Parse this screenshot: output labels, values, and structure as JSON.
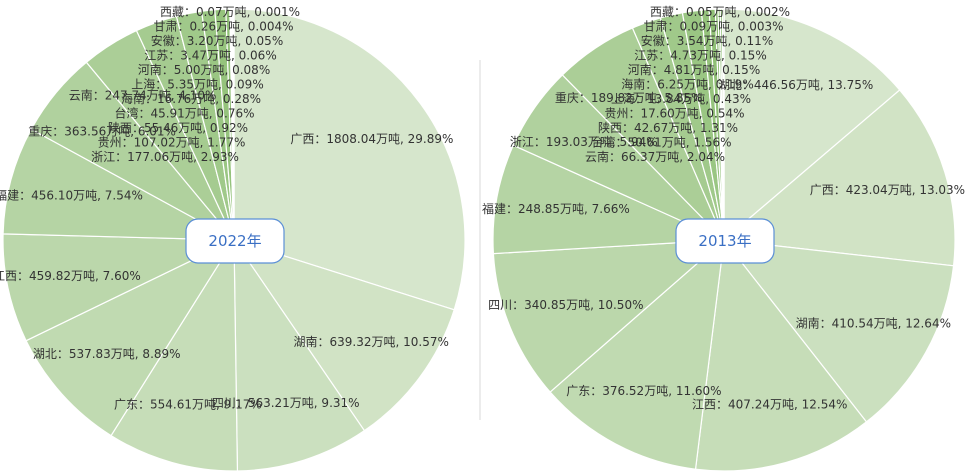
{
  "chart_data": [
    {
      "type": "pie",
      "title": "2022年",
      "unit": "万吨",
      "slices": [
        {
          "name": "广西",
          "value": 1808.04,
          "pct": "29.89%"
        },
        {
          "name": "湖南",
          "value": 639.32,
          "pct": "10.57%"
        },
        {
          "name": "四川",
          "value": 563.21,
          "pct": "9.31%"
        },
        {
          "name": "广东",
          "value": 554.61,
          "pct": "9.17%"
        },
        {
          "name": "湖北",
          "value": 537.83,
          "pct": "8.89%"
        },
        {
          "name": "江西",
          "value": 459.82,
          "pct": "7.60%"
        },
        {
          "name": "福建",
          "value": 456.1,
          "pct": "7.54%"
        },
        {
          "name": "重庆",
          "value": 363.56,
          "pct": "6.01%"
        },
        {
          "name": "云南",
          "value": 247.74,
          "pct": "4.10%"
        },
        {
          "name": "浙江",
          "value": 177.06,
          "pct": "2.93%"
        },
        {
          "name": "贵州",
          "value": 107.02,
          "pct": "1.77%"
        },
        {
          "name": "陕西",
          "value": 55.46,
          "pct": "0.92%"
        },
        {
          "name": "台湾",
          "value": 45.91,
          "pct": "0.76%"
        },
        {
          "name": "海南",
          "value": 16.76,
          "pct": "0.28%"
        },
        {
          "name": "上海",
          "value": 5.35,
          "pct": "0.09%"
        },
        {
          "name": "河南",
          "value": 5.0,
          "pct": "0.08%"
        },
        {
          "name": "江苏",
          "value": 3.47,
          "pct": "0.06%"
        },
        {
          "name": "安徽",
          "value": 3.2,
          "pct": "0.05%"
        },
        {
          "name": "甘肃",
          "value": 0.26,
          "pct": "0.004%"
        },
        {
          "name": "西藏",
          "value": 0.07,
          "pct": "0.001%"
        }
      ]
    },
    {
      "type": "pie",
      "title": "2013年",
      "unit": "万吨",
      "slices": [
        {
          "name": "湖北",
          "value": 446.56,
          "pct": "13.75%"
        },
        {
          "name": "广西",
          "value": 423.04,
          "pct": "13.03%"
        },
        {
          "name": "湖南",
          "value": 410.54,
          "pct": "12.64%"
        },
        {
          "name": "江西",
          "value": 407.24,
          "pct": "12.54%"
        },
        {
          "name": "广东",
          "value": 376.52,
          "pct": "11.60%"
        },
        {
          "name": "四川",
          "value": 340.85,
          "pct": "10.50%"
        },
        {
          "name": "福建",
          "value": 248.85,
          "pct": "7.66%"
        },
        {
          "name": "浙江",
          "value": 193.03,
          "pct": "5.94%"
        },
        {
          "name": "重庆",
          "value": 189.82,
          "pct": "5.85%"
        },
        {
          "name": "云南",
          "value": 66.37,
          "pct": "2.04%"
        },
        {
          "name": "台湾",
          "value": 50.61,
          "pct": "1.56%"
        },
        {
          "name": "陕西",
          "value": 42.67,
          "pct": "1.31%"
        },
        {
          "name": "贵州",
          "value": 17.6,
          "pct": "0.54%"
        },
        {
          "name": "上海",
          "value": 13.84,
          "pct": "0.43%"
        },
        {
          "name": "海南",
          "value": 6.25,
          "pct": "0.19%"
        },
        {
          "name": "河南",
          "value": 4.81,
          "pct": "0.15%"
        },
        {
          "name": "江苏",
          "value": 4.73,
          "pct": "0.15%"
        },
        {
          "name": "安徽",
          "value": 3.54,
          "pct": "0.11%"
        },
        {
          "name": "甘肃",
          "value": 0.09,
          "pct": "0.003%"
        },
        {
          "name": "西藏",
          "value": 0.05,
          "pct": "0.002%"
        }
      ]
    }
  ],
  "colors": {
    "pale": "#d6e6cc",
    "deep": "#6fae4e",
    "year_border": "#5b8fd6",
    "year_text": "#3a6fc4"
  }
}
